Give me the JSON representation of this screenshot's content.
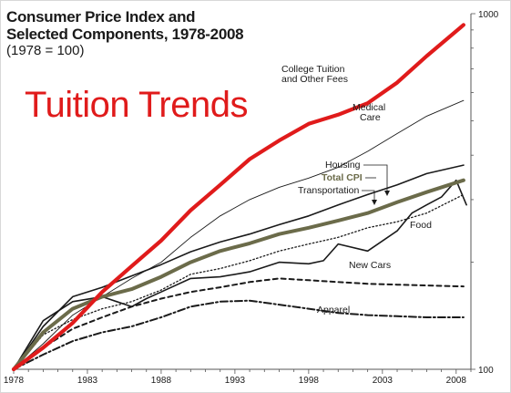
{
  "chart_data": {
    "type": "line",
    "title": "Consumer Price Index and",
    "title_line2": "Selected Components, 1978-2008",
    "subtitle": "(1978 = 100)",
    "overlay_text": "Tuition Trends",
    "x_ticks": [
      "1978",
      "1983",
      "1988",
      "1993",
      "1998",
      "2003",
      "2008"
    ],
    "y_ticks": [
      "100",
      "1000"
    ],
    "xlim": [
      1978,
      2009
    ],
    "ylim": [
      100,
      1000
    ],
    "y_scale": "log",
    "grid": false,
    "colors": {
      "tuition": "#e01b1b",
      "total_cpi": "#6b6b4a",
      "lines": "#1a1a1a",
      "axis": "#555555"
    },
    "series": [
      {
        "name": "College Tuition and Other Fees",
        "label_line1": "College Tuition",
        "label_line2": "and Other Fees",
        "style": "red-thick",
        "x": [
          1978,
          1980,
          1982,
          1984,
          1986,
          1988,
          1990,
          1992,
          1994,
          1996,
          1998,
          2000,
          2002,
          2004,
          2006,
          2008.5
        ],
        "y": [
          100,
          115,
          135,
          165,
          195,
          230,
          280,
          330,
          390,
          440,
          490,
          520,
          560,
          640,
          760,
          930
        ]
      },
      {
        "name": "Medical Care",
        "label_line1": "Medical",
        "label_line2": "Care",
        "style": "thin",
        "x": [
          1978,
          1980,
          1982,
          1984,
          1986,
          1988,
          1990,
          1992,
          1994,
          1996,
          1998,
          2000,
          2002,
          2004,
          2006,
          2008.5
        ],
        "y": [
          100,
          118,
          142,
          160,
          180,
          200,
          235,
          270,
          300,
          325,
          345,
          370,
          410,
          460,
          515,
          570
        ]
      },
      {
        "name": "Housing",
        "label_line1": "Housing",
        "style": "medium",
        "x": [
          1978,
          1980,
          1982,
          1984,
          1986,
          1988,
          1990,
          1992,
          1994,
          1996,
          1998,
          2000,
          2002,
          2004,
          2006,
          2008.5
        ],
        "y": [
          100,
          132,
          160,
          170,
          183,
          197,
          214,
          228,
          240,
          255,
          270,
          290,
          310,
          330,
          355,
          375
        ]
      },
      {
        "name": "Total CPI",
        "label_line1": "Total CPI",
        "style": "olive-thick",
        "x": [
          1978,
          1980,
          1982,
          1984,
          1986,
          1988,
          1990,
          1992,
          1994,
          1996,
          1998,
          2000,
          2002,
          2004,
          2006,
          2008.5
        ],
        "y": [
          100,
          127,
          148,
          160,
          168,
          182,
          200,
          215,
          226,
          240,
          250,
          262,
          275,
          295,
          315,
          340
        ]
      },
      {
        "name": "Transportation",
        "label_line1": "Transportation",
        "style": "medium",
        "x": [
          1978,
          1980,
          1982,
          1984,
          1986,
          1987,
          1988,
          1990,
          1992,
          1994,
          1996,
          1998,
          1999,
          2000,
          2002,
          2004,
          2005,
          2006,
          2007,
          2008,
          2008.7
        ],
        "y": [
          100,
          137,
          155,
          160,
          150,
          158,
          165,
          180,
          182,
          188,
          200,
          198,
          202,
          225,
          215,
          245,
          275,
          290,
          305,
          340,
          290
        ]
      },
      {
        "name": "Food",
        "label_line1": "Food",
        "style": "dotted",
        "x": [
          1978,
          1980,
          1982,
          1984,
          1986,
          1988,
          1990,
          1992,
          1994,
          1996,
          1998,
          2000,
          2002,
          2004,
          2006,
          2008.5
        ],
        "y": [
          100,
          125,
          138,
          148,
          155,
          167,
          185,
          192,
          202,
          215,
          225,
          235,
          250,
          260,
          275,
          310
        ]
      },
      {
        "name": "New Cars",
        "label_line1": "New Cars",
        "style": "dashed",
        "x": [
          1978,
          1980,
          1982,
          1984,
          1986,
          1988,
          1990,
          1992,
          1994,
          1996,
          1998,
          2000,
          2002,
          2004,
          2006,
          2008.5
        ],
        "y": [
          100,
          115,
          130,
          140,
          150,
          158,
          165,
          170,
          176,
          180,
          178,
          176,
          174,
          173,
          172,
          171
        ]
      },
      {
        "name": "Apparel",
        "label_line1": "Apparel",
        "style": "dashdot",
        "x": [
          1978,
          1980,
          1982,
          1984,
          1986,
          1988,
          1990,
          1992,
          1994,
          1996,
          1998,
          2000,
          2002,
          2004,
          2006,
          2008.5
        ],
        "y": [
          100,
          110,
          120,
          127,
          132,
          140,
          150,
          155,
          156,
          152,
          148,
          144,
          142,
          141,
          140,
          140
        ]
      }
    ]
  }
}
